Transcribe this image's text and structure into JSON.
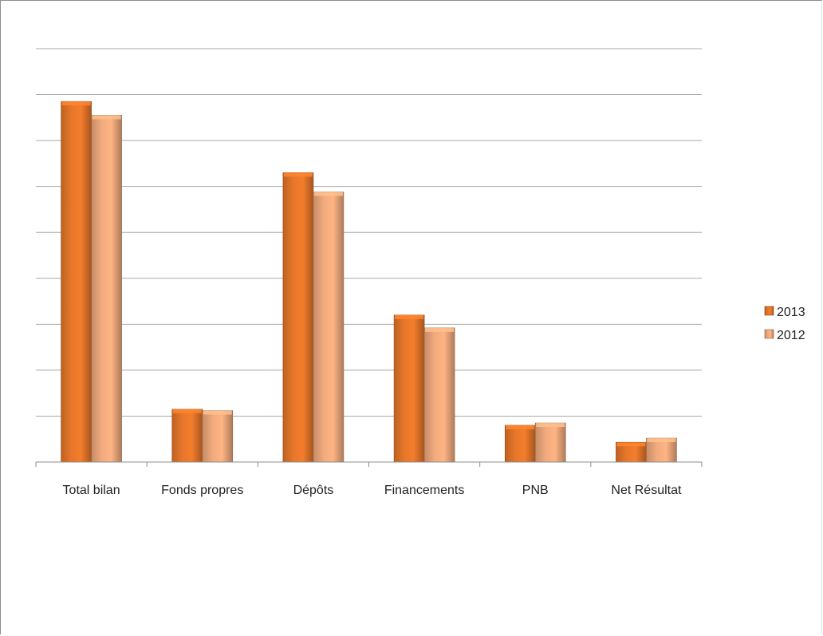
{
  "chart_data": {
    "type": "bar",
    "categories": [
      "Total bilan",
      "Fonds propres",
      "Dépôts",
      "Financements",
      "PNB",
      "Net Résultat"
    ],
    "series": [
      {
        "name": "2013",
        "values": [
          7.85,
          1.15,
          6.3,
          3.2,
          0.8,
          0.43
        ],
        "color": "#e8772a"
      },
      {
        "name": "2012",
        "values": [
          7.55,
          1.12,
          5.88,
          2.92,
          0.85,
          0.52
        ],
        "color": "#f2ab7e"
      }
    ],
    "ylim": [
      0,
      9
    ],
    "gridlines": 9,
    "grid": true,
    "axis_tick_labels": false,
    "legend_position": "right"
  }
}
